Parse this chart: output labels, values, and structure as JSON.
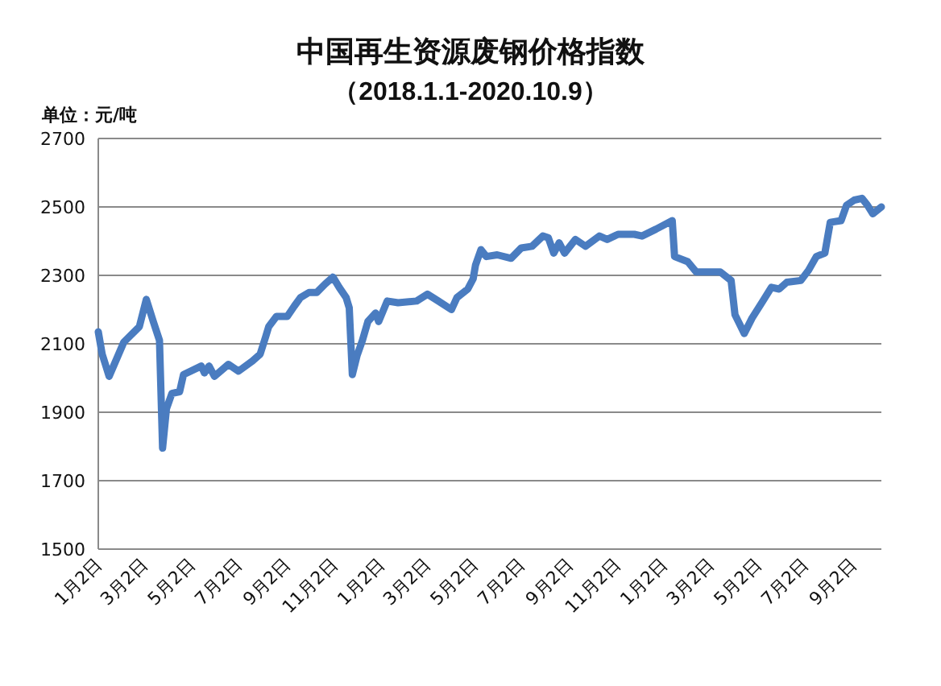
{
  "chart_data": {
    "type": "line",
    "title": "中国再生资源废钢价格指数",
    "subtitle": "（2018.1.1-2020.10.9）",
    "ylabel": "单位：元/吨",
    "x": [
      "2018-01-02",
      "2018-01-07",
      "2018-01-16",
      "2018-02-04",
      "2018-02-24",
      "2018-03-05",
      "2018-03-14",
      "2018-03-22",
      "2018-03-26",
      "2018-03-31",
      "2018-04-07",
      "2018-04-17",
      "2018-04-22",
      "2018-05-15",
      "2018-05-19",
      "2018-05-25",
      "2018-06-01",
      "2018-06-19",
      "2018-07-02",
      "2018-07-20",
      "2018-07-30",
      "2018-08-06",
      "2018-08-10",
      "2018-08-20",
      "2018-09-03",
      "2018-09-12",
      "2018-09-20",
      "2018-10-01",
      "2018-10-11",
      "2018-10-22",
      "2018-11-01",
      "2018-11-09",
      "2018-11-18",
      "2018-11-22",
      "2018-11-26",
      "2018-12-02",
      "2018-12-09",
      "2018-12-16",
      "2018-12-26",
      "2018-12-30",
      "2019-01-10",
      "2019-01-24",
      "2019-02-17",
      "2019-03-03",
      "2019-03-17",
      "2019-04-03",
      "2019-04-10",
      "2019-04-24",
      "2019-05-01",
      "2019-05-04",
      "2019-05-11",
      "2019-05-18",
      "2019-06-01",
      "2019-06-19",
      "2019-07-02",
      "2019-07-16",
      "2019-07-30",
      "2019-08-06",
      "2019-08-13",
      "2019-08-20",
      "2019-08-27",
      "2019-09-10",
      "2019-09-23",
      "2019-10-11",
      "2019-10-21",
      "2019-11-04",
      "2019-11-25",
      "2019-12-05",
      "2019-12-23",
      "2020-01-13",
      "2020-01-16",
      "2020-02-02",
      "2020-02-13",
      "2020-03-15",
      "2020-03-29",
      "2020-04-03",
      "2020-04-15",
      "2020-04-25",
      "2020-05-09",
      "2020-05-20",
      "2020-05-30",
      "2020-06-09",
      "2020-06-27",
      "2020-07-07",
      "2020-07-17",
      "2020-07-28",
      "2020-08-04",
      "2020-08-18",
      "2020-08-25",
      "2020-09-04",
      "2020-09-14",
      "2020-09-21",
      "2020-09-28",
      "2020-10-09"
    ],
    "series": [
      {
        "color": "#4a7cc0",
        "values": [
          2135,
          2070,
          2005,
          2105,
          2150,
          2230,
          2165,
          2110,
          1795,
          1910,
          1955,
          1960,
          2010,
          2035,
          2015,
          2035,
          2005,
          2040,
          2020,
          2050,
          2070,
          2120,
          2150,
          2180,
          2180,
          2210,
          2235,
          2250,
          2250,
          2275,
          2295,
          2265,
          2235,
          2205,
          2010,
          2065,
          2110,
          2165,
          2190,
          2165,
          2225,
          2220,
          2225,
          2245,
          2225,
          2200,
          2235,
          2260,
          2290,
          2330,
          2375,
          2355,
          2360,
          2350,
          2380,
          2385,
          2415,
          2410,
          2365,
          2395,
          2365,
          2405,
          2385,
          2415,
          2405,
          2420,
          2420,
          2415,
          2435,
          2460,
          2355,
          2340,
          2310,
          2310,
          2285,
          2185,
          2130,
          2175,
          2225,
          2265,
          2260,
          2280,
          2285,
          2315,
          2355,
          2365,
          2455,
          2460,
          2505,
          2520,
          2525,
          2505,
          2480,
          2500
        ]
      }
    ],
    "xlim": [
      "2018-01-02",
      "2020-10-09"
    ],
    "xticks": [
      {
        "value": "2018-01-02",
        "label": "1月2日"
      },
      {
        "value": "2018-03-02",
        "label": "3月2日"
      },
      {
        "value": "2018-05-02",
        "label": "5月2日"
      },
      {
        "value": "2018-07-02",
        "label": "7月2日"
      },
      {
        "value": "2018-09-02",
        "label": "9月2日"
      },
      {
        "value": "2018-11-02",
        "label": "11月2日"
      },
      {
        "value": "2019-01-02",
        "label": "1月2日"
      },
      {
        "value": "2019-03-02",
        "label": "3月2日"
      },
      {
        "value": "2019-05-02",
        "label": "5月2日"
      },
      {
        "value": "2019-07-02",
        "label": "7月2日"
      },
      {
        "value": "2019-09-02",
        "label": "9月2日"
      },
      {
        "value": "2019-11-02",
        "label": "11月2日"
      },
      {
        "value": "2020-01-02",
        "label": "1月2日"
      },
      {
        "value": "2020-03-02",
        "label": "3月2日"
      },
      {
        "value": "2020-05-02",
        "label": "5月2日"
      },
      {
        "value": "2020-07-02",
        "label": "7月2日"
      },
      {
        "value": "2020-09-02",
        "label": "9月2日"
      }
    ],
    "ylim": [
      1500,
      2700
    ],
    "yticks": [
      1500,
      1700,
      1900,
      2100,
      2300,
      2500,
      2700
    ],
    "grid": "y",
    "marker": "none",
    "line_style": "solid"
  }
}
